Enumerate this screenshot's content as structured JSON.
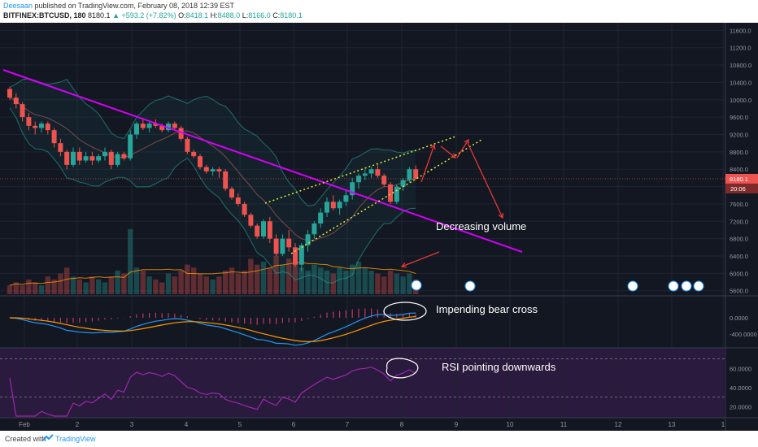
{
  "header": {
    "author": "Deesaan",
    "published": "published on TradingView.com, February 08, 2018 12:39 EST",
    "symbol": "BITFINEX:BTCUSD, 180",
    "price": "8180.1",
    "change": "+593.2 (+7.82%)",
    "o_label": "O:",
    "o": "8418.1",
    "h_label": "H:",
    "h": "8488.0",
    "l_label": "L:",
    "l": "8166.0",
    "c_label": "C:",
    "c": "8180.1"
  },
  "footer": {
    "created": "Created with",
    "brand": "TradingView"
  },
  "colors": {
    "bg": "#131722",
    "up": "#26a69a",
    "down": "#ef5350",
    "trendline": "#d500f9",
    "wedge": "#e0ee3a",
    "arrow": "#e53935",
    "bb": "#26a69a",
    "ma": "#e57373",
    "vol_ma": "#ff9800",
    "macd": "#2196f3",
    "signal": "#ff9800",
    "rsi": "#9c27b0"
  },
  "chart_data": {
    "type": "candlestick",
    "x_ticks": [
      "Feb",
      "2",
      "3",
      "4",
      "5",
      "6",
      "7",
      "8",
      "9",
      "10",
      "11",
      "12",
      "13",
      "1"
    ],
    "price_ticks": [
      "11600.0",
      "11200.0",
      "10800.0",
      "10400.0",
      "10000.0",
      "9600.0",
      "9200.0",
      "8800.0",
      "8400.0",
      "8000.0",
      "7600.0",
      "7200.0",
      "6800.0",
      "6400.0",
      "6000.0",
      "5600.0"
    ],
    "price_range": [
      5520,
      11700
    ],
    "last_price_label": "8180.1",
    "countdown_label": "20:06",
    "candles": [
      [
        10250,
        10300,
        10000,
        10050
      ],
      [
        10050,
        10150,
        9800,
        9900
      ],
      [
        9900,
        9950,
        9500,
        9600
      ],
      [
        9600,
        9700,
        9300,
        9400
      ],
      [
        9400,
        9500,
        9200,
        9350
      ],
      [
        9350,
        9500,
        9250,
        9450
      ],
      [
        9450,
        9500,
        9200,
        9300
      ],
      [
        9300,
        9350,
        8900,
        9000
      ],
      [
        9000,
        9100,
        8700,
        8800
      ],
      [
        8800,
        8850,
        8400,
        8500
      ],
      [
        8500,
        8900,
        8450,
        8800
      ],
      [
        8800,
        8900,
        8500,
        8600
      ],
      [
        8600,
        8800,
        8550,
        8700
      ],
      [
        8700,
        8800,
        8500,
        8600
      ],
      [
        8600,
        8750,
        8550,
        8700
      ],
      [
        8700,
        8900,
        8600,
        8800
      ],
      [
        8800,
        8850,
        8400,
        8500
      ],
      [
        8500,
        8800,
        8450,
        8750
      ],
      [
        8750,
        8800,
        8600,
        8650
      ],
      [
        8650,
        9300,
        8600,
        9200
      ],
      [
        9200,
        9500,
        9100,
        9450
      ],
      [
        9450,
        9550,
        9300,
        9350
      ],
      [
        9350,
        9500,
        9250,
        9450
      ],
      [
        9450,
        9550,
        9350,
        9400
      ],
      [
        9400,
        9450,
        9250,
        9300
      ],
      [
        9300,
        9500,
        9250,
        9450
      ],
      [
        9450,
        9500,
        9300,
        9350
      ],
      [
        9350,
        9400,
        9050,
        9100
      ],
      [
        9100,
        9150,
        8750,
        8800
      ],
      [
        8800,
        8850,
        8650,
        8700
      ],
      [
        8700,
        8750,
        8400,
        8450
      ],
      [
        8450,
        8500,
        8300,
        8350
      ],
      [
        8350,
        8450,
        8250,
        8400
      ],
      [
        8400,
        8450,
        8200,
        8350
      ],
      [
        8350,
        8400,
        7900,
        7950
      ],
      [
        7950,
        8000,
        7700,
        7750
      ],
      [
        7750,
        7850,
        7550,
        7600
      ],
      [
        7600,
        7650,
        7300,
        7350
      ],
      [
        7350,
        7400,
        7050,
        7100
      ],
      [
        7100,
        7150,
        6800,
        6850
      ],
      [
        6850,
        7250,
        6800,
        7200
      ],
      [
        7200,
        7300,
        6700,
        6800
      ],
      [
        6800,
        6900,
        6400,
        6450
      ],
      [
        6450,
        6900,
        6400,
        6800
      ],
      [
        6800,
        7000,
        6500,
        6600
      ],
      [
        6600,
        6700,
        6150,
        6200
      ],
      [
        6200,
        6700,
        6050,
        6650
      ],
      [
        6650,
        7000,
        6500,
        6900
      ],
      [
        6900,
        7200,
        6800,
        7150
      ],
      [
        7150,
        7500,
        7050,
        7400
      ],
      [
        7400,
        7750,
        7300,
        7650
      ],
      [
        7650,
        7800,
        7450,
        7500
      ],
      [
        7500,
        7700,
        7350,
        7650
      ],
      [
        7650,
        7900,
        7550,
        7800
      ],
      [
        7800,
        8200,
        7700,
        8100
      ],
      [
        8100,
        8300,
        7950,
        8250
      ],
      [
        8250,
        8400,
        8150,
        8300
      ],
      [
        8300,
        8450,
        8200,
        8400
      ],
      [
        8400,
        8500,
        8200,
        8250
      ],
      [
        8250,
        8300,
        8000,
        8050
      ],
      [
        8050,
        8100,
        7600,
        7650
      ],
      [
        7650,
        8050,
        7600,
        8000
      ],
      [
        8000,
        8200,
        7900,
        8150
      ],
      [
        8150,
        8450,
        8100,
        8400
      ],
      [
        8400,
        8488,
        8166,
        8180
      ]
    ],
    "volume": [
      3,
      4,
      3,
      5,
      4,
      3,
      6,
      5,
      7,
      9,
      6,
      5,
      4,
      6,
      5,
      4,
      6,
      8,
      7,
      22,
      9,
      8,
      6,
      5,
      4,
      7,
      6,
      8,
      10,
      9,
      7,
      6,
      5,
      6,
      8,
      9,
      7,
      8,
      12,
      10,
      11,
      9,
      13,
      10,
      12,
      11,
      9,
      8,
      10,
      9,
      8,
      7,
      9,
      8,
      10,
      11,
      9,
      8,
      7,
      6,
      8,
      7,
      6,
      7,
      5
    ],
    "macd_range": [
      -700,
      500
    ],
    "macd_ticks": [
      "0.0000",
      "-400.0000"
    ],
    "rsi_range": [
      10,
      80
    ],
    "rsi_ticks": [
      "60.0000",
      "40.0000",
      "20.0000"
    ],
    "rsi_levels": [
      70,
      30
    ]
  },
  "annotations": {
    "decreasing_volume": "Decreasing volume",
    "bear_cross": "Impending bear cross",
    "rsi_down": "RSI pointing downwards"
  }
}
